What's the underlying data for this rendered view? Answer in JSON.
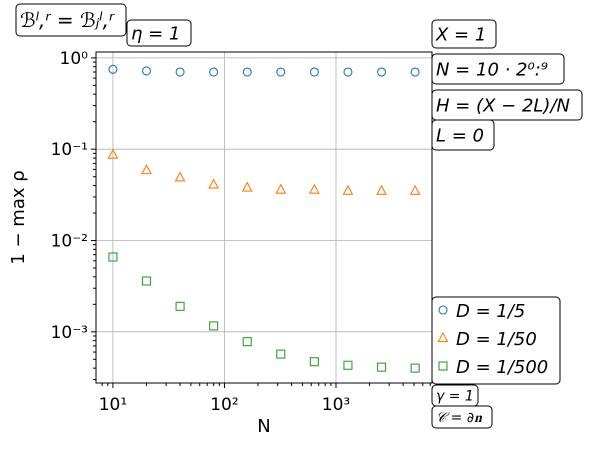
{
  "chart_data": {
    "type": "scatter",
    "xlabel": "N",
    "ylabel": "1 − max ρ",
    "log_x": true,
    "log_y": true,
    "grid": true,
    "legend": "lower-right-outside",
    "xlim": [
      7.05,
      7260
    ],
    "ylim": [
      0.000275,
      1.16
    ],
    "xticks": [
      {
        "value": 10,
        "label": "10¹"
      },
      {
        "value": 100,
        "label": "10²"
      },
      {
        "value": 1000,
        "label": "10³"
      }
    ],
    "yticks": [
      {
        "value": 1,
        "label": "10⁰"
      },
      {
        "value": 0.1,
        "label": "10⁻¹"
      },
      {
        "value": 0.01,
        "label": "10⁻²"
      },
      {
        "value": 0.001,
        "label": "10⁻³"
      }
    ],
    "x": [
      10,
      20,
      40,
      80,
      160,
      320,
      640,
      1280,
      2560,
      5120
    ],
    "series": [
      {
        "name": "D = 1/5",
        "color": "#1f77b4",
        "marker": "circle",
        "values": [
          0.75,
          0.72,
          0.7,
          0.7,
          0.7,
          0.7,
          0.7,
          0.7,
          0.7,
          0.7
        ]
      },
      {
        "name": "D = 1/50",
        "color": "#ff7f0e",
        "marker": "triangle",
        "values": [
          0.087,
          0.059,
          0.049,
          0.041,
          0.038,
          0.036,
          0.036,
          0.035,
          0.035,
          0.035
        ]
      },
      {
        "name": "D = 1/500",
        "color": "#2ca02c",
        "marker": "square",
        "values": [
          0.0066,
          0.0036,
          0.0019,
          0.00116,
          0.00078,
          0.00057,
          0.00047,
          0.00043,
          0.00041,
          0.0004
        ]
      }
    ],
    "annotations": [
      "ℬˡ,ʳ = ℬⱼˡ,ʳ",
      "η = 1",
      "X = 1",
      "N = 10 · 2⁰:⁹",
      "H = (X − 2L)/N",
      "L = 0",
      "γ = 1",
      "𝒞 = ∂𝐧"
    ]
  }
}
